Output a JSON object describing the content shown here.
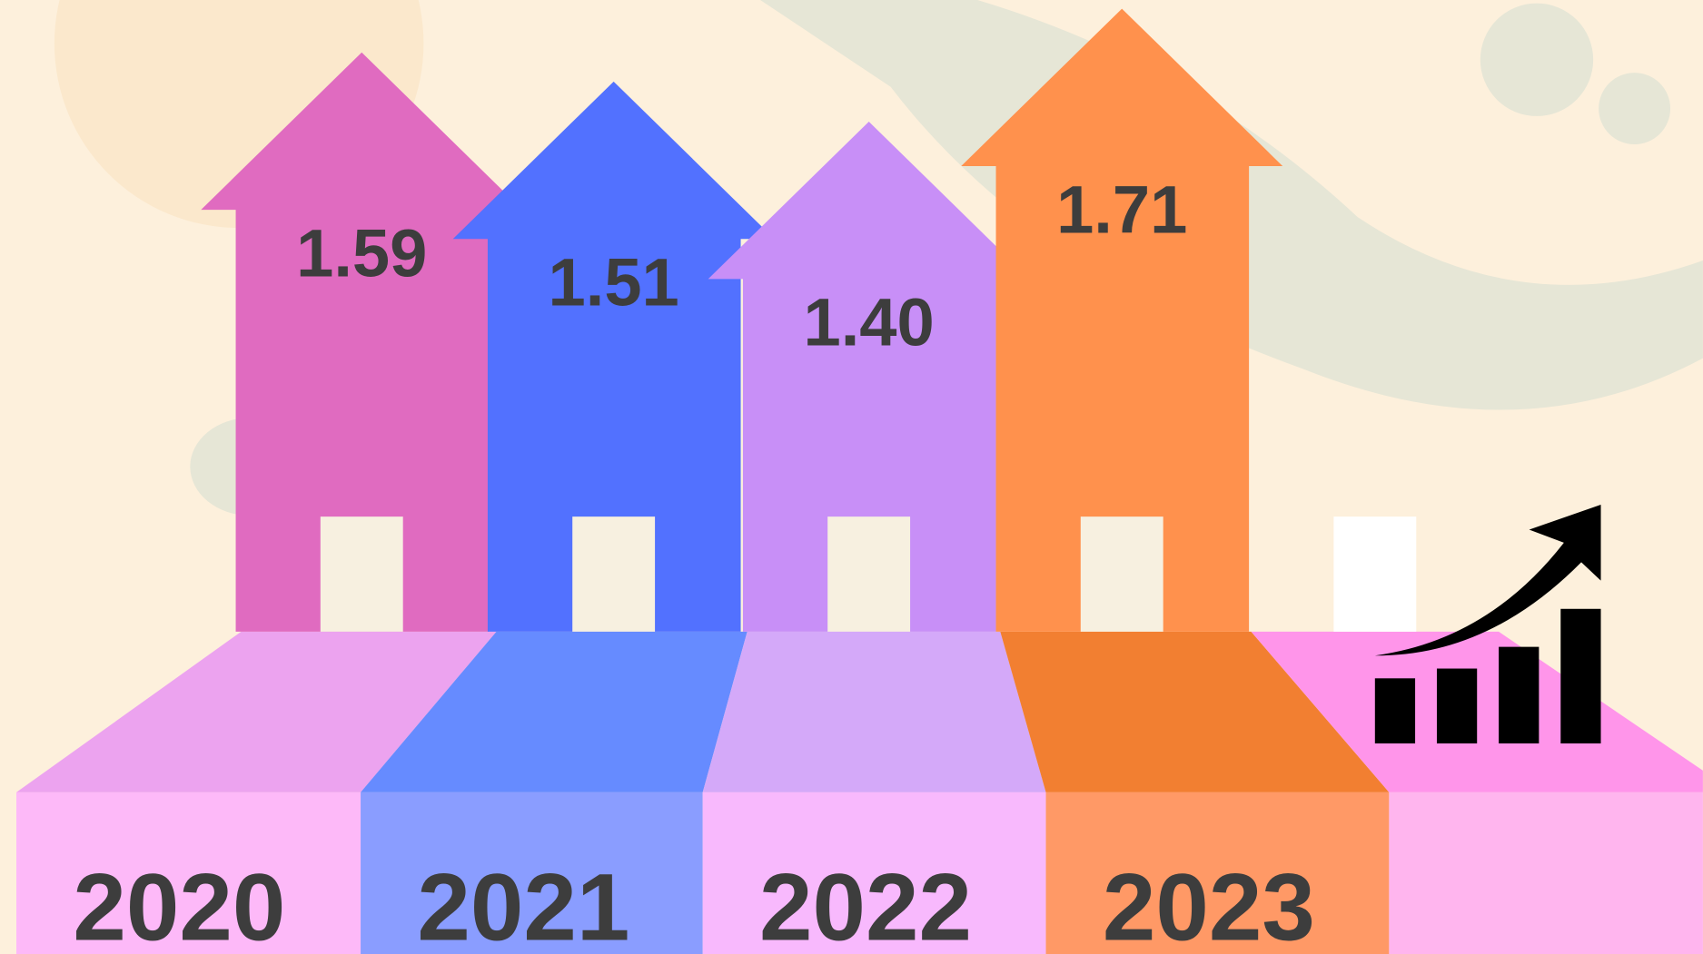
{
  "chart_data": {
    "type": "bar",
    "categories": [
      "2020",
      "2021",
      "2022",
      "2023"
    ],
    "values": [
      1.59,
      1.51,
      1.4,
      1.71
    ],
    "value_labels": [
      "1.59",
      "1.51",
      "1.40",
      "1.71"
    ],
    "colors": [
      "#e06bc0",
      "#5271ff",
      "#c88ff7",
      "#ff914d"
    ]
  }
}
